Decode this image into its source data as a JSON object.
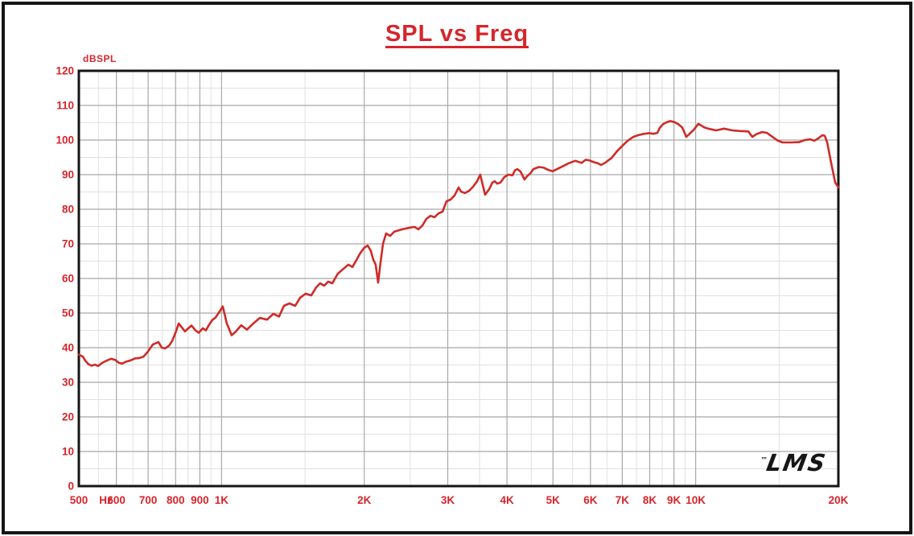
{
  "page": {
    "title": "SPL vs Freq"
  },
  "colors": {
    "accent_red": "#d6252b",
    "curve_red": "#cf2b28",
    "grid_major": "#a8a8a8",
    "grid_minor": "#e0e0e0",
    "frame_black": "#151515"
  },
  "chart_data": {
    "type": "line",
    "title": "SPL vs Freq",
    "xlabel": "Hz",
    "ylabel": "dBSPL",
    "x_scale": "log",
    "xlim": [
      500,
      20000
    ],
    "ylim": [
      0,
      120
    ],
    "grid": true,
    "legend": "none",
    "y_major_step": 10,
    "y_minor_step": 5,
    "y_tick_values": [
      0,
      10,
      20,
      30,
      40,
      50,
      60,
      70,
      80,
      90,
      100,
      110,
      120
    ],
    "x_ticks": [
      {
        "f": 500,
        "label": "500"
      },
      {
        "f": 600,
        "label": "600"
      },
      {
        "f": 700,
        "label": "700"
      },
      {
        "f": 800,
        "label": "800"
      },
      {
        "f": 900,
        "label": "900"
      },
      {
        "f": 1000,
        "label": "1K"
      },
      {
        "f": 2000,
        "label": "2K"
      },
      {
        "f": 3000,
        "label": "3K"
      },
      {
        "f": 4000,
        "label": "4K"
      },
      {
        "f": 5000,
        "label": "5K"
      },
      {
        "f": 6000,
        "label": "6K"
      },
      {
        "f": 7000,
        "label": "7K"
      },
      {
        "f": 8000,
        "label": "8K"
      },
      {
        "f": 9000,
        "label": "9K"
      },
      {
        "f": 10000,
        "label": "10K"
      },
      {
        "f": 20000,
        "label": "20K"
      }
    ],
    "x_unit_label": {
      "f": 570,
      "label": "Hz"
    },
    "x_major_gridlines": [
      600,
      700,
      800,
      900,
      1000,
      2000,
      3000,
      4000,
      5000,
      6000,
      7000,
      8000,
      9000,
      10000
    ],
    "x_minor_gridlines": [
      550,
      650,
      750,
      850,
      950,
      1500,
      2500,
      3500,
      4500,
      5500,
      6500,
      7500,
      8500,
      9500,
      15000
    ],
    "logo": {
      "tm": "™",
      "text": "LMS"
    },
    "series": [
      {
        "name": "SPL",
        "color": "#cf2b28",
        "points": [
          [
            500,
            38.0
          ],
          [
            510,
            37.4
          ],
          [
            516,
            36.2
          ],
          [
            524,
            35.2
          ],
          [
            532,
            34.8
          ],
          [
            541,
            35.1
          ],
          [
            549,
            34.7
          ],
          [
            560,
            35.6
          ],
          [
            573,
            36.3
          ],
          [
            585,
            36.8
          ],
          [
            596,
            36.5
          ],
          [
            608,
            35.6
          ],
          [
            617,
            35.4
          ],
          [
            630,
            36.0
          ],
          [
            642,
            36.3
          ],
          [
            657,
            36.9
          ],
          [
            670,
            37.0
          ],
          [
            684,
            37.4
          ],
          [
            697,
            38.6
          ],
          [
            716,
            40.9
          ],
          [
            736,
            41.6
          ],
          [
            748,
            40.0
          ],
          [
            760,
            39.8
          ],
          [
            775,
            40.6
          ],
          [
            787,
            42.0
          ],
          [
            799,
            44.2
          ],
          [
            812,
            47.0
          ],
          [
            824,
            45.9
          ],
          [
            837,
            44.7
          ],
          [
            851,
            45.6
          ],
          [
            864,
            46.4
          ],
          [
            881,
            45.0
          ],
          [
            895,
            44.3
          ],
          [
            913,
            45.6
          ],
          [
            927,
            45.0
          ],
          [
            941,
            46.6
          ],
          [
            956,
            48.0
          ],
          [
            971,
            48.7
          ],
          [
            987,
            50.1
          ],
          [
            1006,
            51.9
          ],
          [
            1026,
            47.0
          ],
          [
            1050,
            43.6
          ],
          [
            1071,
            44.6
          ],
          [
            1100,
            46.5
          ],
          [
            1131,
            45.2
          ],
          [
            1167,
            47.0
          ],
          [
            1204,
            48.6
          ],
          [
            1247,
            48.1
          ],
          [
            1286,
            49.8
          ],
          [
            1322,
            49.0
          ],
          [
            1354,
            52.1
          ],
          [
            1391,
            52.8
          ],
          [
            1430,
            52.1
          ],
          [
            1464,
            54.4
          ],
          [
            1504,
            55.6
          ],
          [
            1546,
            55.1
          ],
          [
            1583,
            57.4
          ],
          [
            1614,
            58.6
          ],
          [
            1646,
            57.9
          ],
          [
            1679,
            59.1
          ],
          [
            1712,
            58.6
          ],
          [
            1759,
            61.4
          ],
          [
            1808,
            62.8
          ],
          [
            1851,
            64.0
          ],
          [
            1888,
            63.3
          ],
          [
            1925,
            65.3
          ],
          [
            1955,
            67.0
          ],
          [
            1994,
            68.7
          ],
          [
            2033,
            69.5
          ],
          [
            2065,
            68.0
          ],
          [
            2089,
            65.5
          ],
          [
            2114,
            64.0
          ],
          [
            2139,
            58.8
          ],
          [
            2164,
            64.5
          ],
          [
            2190,
            70.0
          ],
          [
            2224,
            73.0
          ],
          [
            2268,
            72.3
          ],
          [
            2313,
            73.5
          ],
          [
            2405,
            74.2
          ],
          [
            2501,
            74.7
          ],
          [
            2551,
            74.9
          ],
          [
            2601,
            74.2
          ],
          [
            2652,
            75.3
          ],
          [
            2704,
            77.2
          ],
          [
            2758,
            78.1
          ],
          [
            2812,
            77.7
          ],
          [
            2868,
            78.8
          ],
          [
            2924,
            79.3
          ],
          [
            2982,
            82.3
          ],
          [
            3041,
            82.8
          ],
          [
            3101,
            84.0
          ],
          [
            3162,
            86.3
          ],
          [
            3199,
            85.1
          ],
          [
            3262,
            84.7
          ],
          [
            3326,
            85.3
          ],
          [
            3392,
            86.5
          ],
          [
            3459,
            88.1
          ],
          [
            3513,
            90.0
          ],
          [
            3555,
            87.0
          ],
          [
            3597,
            84.2
          ],
          [
            3668,
            85.8
          ],
          [
            3725,
            87.7
          ],
          [
            3769,
            88.1
          ],
          [
            3814,
            87.4
          ],
          [
            3873,
            87.7
          ],
          [
            3950,
            89.3
          ],
          [
            4028,
            90.0
          ],
          [
            4107,
            89.8
          ],
          [
            4156,
            91.2
          ],
          [
            4204,
            91.6
          ],
          [
            4271,
            90.9
          ],
          [
            4355,
            88.6
          ],
          [
            4406,
            89.5
          ],
          [
            4476,
            90.3
          ],
          [
            4546,
            91.6
          ],
          [
            4673,
            92.2
          ],
          [
            4784,
            92.0
          ],
          [
            4898,
            91.3
          ],
          [
            5000,
            91.0
          ],
          [
            5133,
            91.8
          ],
          [
            5255,
            92.5
          ],
          [
            5400,
            93.3
          ],
          [
            5572,
            94.0
          ],
          [
            5748,
            93.4
          ],
          [
            5862,
            94.3
          ],
          [
            5978,
            94.1
          ],
          [
            6097,
            93.6
          ],
          [
            6218,
            93.3
          ],
          [
            6315,
            92.8
          ],
          [
            6440,
            93.4
          ],
          [
            6568,
            94.3
          ],
          [
            6645,
            94.8
          ],
          [
            6829,
            96.8
          ],
          [
            6991,
            98.2
          ],
          [
            7186,
            99.8
          ],
          [
            7386,
            100.9
          ],
          [
            7561,
            101.4
          ],
          [
            7770,
            101.8
          ],
          [
            7986,
            102.0
          ],
          [
            8144,
            101.8
          ],
          [
            8304,
            102.1
          ],
          [
            8401,
            103.5
          ],
          [
            8534,
            104.6
          ],
          [
            8669,
            105.1
          ],
          [
            8838,
            105.5
          ],
          [
            9012,
            105.2
          ],
          [
            9190,
            104.6
          ],
          [
            9371,
            103.6
          ],
          [
            9556,
            100.9
          ],
          [
            9707,
            101.8
          ],
          [
            9898,
            102.9
          ],
          [
            10133,
            104.7
          ],
          [
            10414,
            103.7
          ],
          [
            10620,
            103.3
          ],
          [
            11044,
            102.8
          ],
          [
            11484,
            103.3
          ],
          [
            11943,
            102.8
          ],
          [
            12419,
            102.6
          ],
          [
            12915,
            102.5
          ],
          [
            13169,
            100.9
          ],
          [
            13429,
            101.7
          ],
          [
            13802,
            102.3
          ],
          [
            14129,
            102.1
          ],
          [
            14520,
            100.9
          ],
          [
            14921,
            99.8
          ],
          [
            15274,
            99.3
          ],
          [
            15887,
            99.3
          ],
          [
            16524,
            99.4
          ],
          [
            16981,
            100.0
          ],
          [
            17451,
            100.2
          ],
          [
            17795,
            99.8
          ],
          [
            18146,
            100.5
          ],
          [
            18504,
            101.4
          ],
          [
            18722,
            101.2
          ],
          [
            18943,
            99.3
          ],
          [
            19316,
            93.3
          ],
          [
            19697,
            87.7
          ],
          [
            20000,
            86.3
          ]
        ]
      }
    ]
  }
}
